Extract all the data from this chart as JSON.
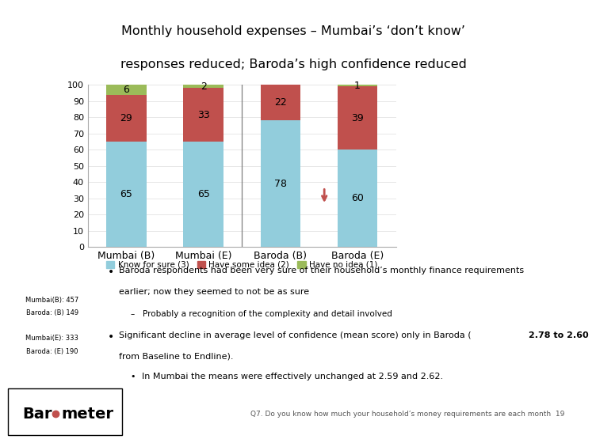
{
  "title_line1": "Monthly household expenses – Mumbai’s ‘don’t know’",
  "title_line2": "responses reduced; Baroda’s high confidence reduced",
  "categories": [
    "Mumbai (B)",
    "Mumbai (E)",
    "Baroda (B)",
    "Baroda (E)"
  ],
  "know_for_sure": [
    65,
    65,
    78,
    60
  ],
  "have_some_idea": [
    29,
    33,
    22,
    39
  ],
  "have_no_idea": [
    6,
    2,
    0,
    1
  ],
  "color_know": "#92CDDC",
  "color_some": "#C0504D",
  "color_no": "#9BBB59",
  "legend_labels": [
    "Know for sure (3)",
    "Have some idea (2)",
    "Have no idea (1)"
  ],
  "yticks": [
    0,
    10,
    20,
    30,
    40,
    50,
    60,
    70,
    80,
    90,
    100
  ],
  "bg_color": "#FFFFFF",
  "header_bg": "#D9E2F0",
  "sample_box_bg": "#BFBFBF",
  "footer_bg": "#E8E8E8",
  "bullet1_text1": "Baroda respondents had been very sure of their household’s monthly finance requirements",
  "bullet1_text2": "earlier; now they seemed to not be as sure",
  "bullet1_sub": "–   Probably a recognition of the complexity and detail involved",
  "bullet2_line1": "Significant decline in average level of confidence (mean score) only in Baroda (",
  "bullet2_bold": "2.78 to 2.60",
  "bullet2_line2": "from Baseline to Endline).",
  "bullet3_text": "In Mumbai the means were effectively unchanged at 2.59 and 2.62.",
  "sample_box1_line1": "Mumbai(B): 457",
  "sample_box1_line2": "Baroda: (B) 149",
  "sample_box2_line1": "Mumbai(E): 333",
  "sample_box2_line2": "Baroda: (E) 190",
  "footer_text": "Q7. Do you know how much your household’s money requirements are each month",
  "page_num": "19"
}
